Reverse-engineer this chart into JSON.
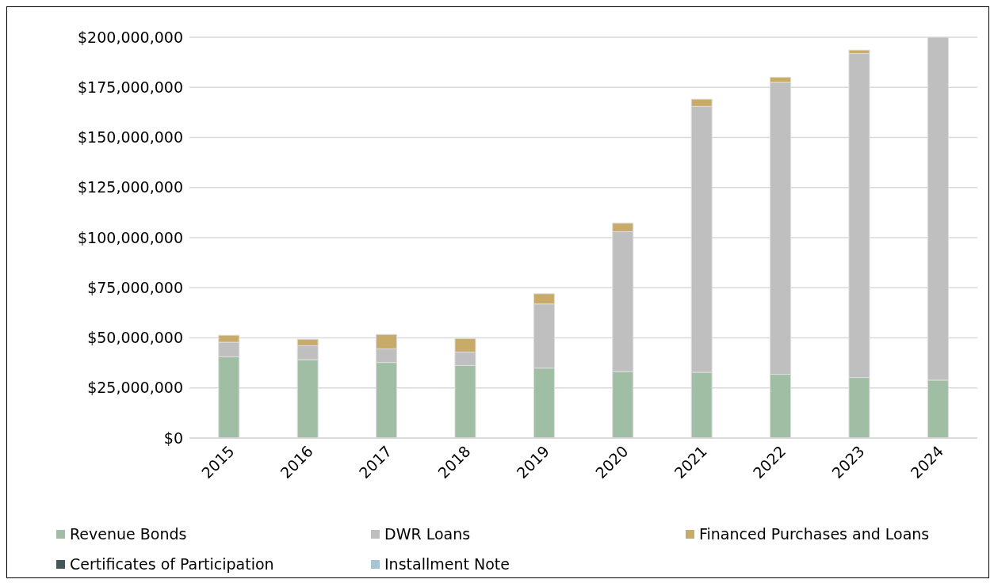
{
  "chart_data": {
    "type": "bar",
    "stacked": true,
    "categories": [
      "2015",
      "2016",
      "2017",
      "2018",
      "2019",
      "2020",
      "2021",
      "2022",
      "2023",
      "2024"
    ],
    "series": [
      {
        "name": "Revenue Bonds",
        "color": "#9fbea4",
        "values": [
          40500000.0,
          39100000.0,
          37700000.0,
          36200000.0,
          34900000.0,
          33200000.0,
          32800000.0,
          31800000.0,
          30200000.0,
          28900000.0
        ]
      },
      {
        "name": "DWR Loans",
        "color": "#bfbfbf",
        "values": [
          7300000.0,
          7000000.0,
          6800000.0,
          6700000.0,
          32000000.0,
          69800000.0,
          132700000.0,
          145700000.0,
          161700000.0,
          171100000.0
        ]
      },
      {
        "name": "Financed Purchases and Loans",
        "color": "#c9ab69",
        "values": [
          3500000.0,
          3200000.0,
          7200000.0,
          6700000.0,
          5100000.0,
          4200000.0,
          3600000.0,
          2500000.0,
          1700000.0,
          0
        ]
      },
      {
        "name": "Certificates of Participation",
        "color": "#44585c",
        "values": [
          0,
          0,
          0,
          0,
          0,
          0,
          0,
          0,
          0,
          0
        ]
      },
      {
        "name": "Installment Note",
        "color": "#a9c4d3",
        "values": [
          0,
          0,
          0,
          0,
          0,
          0,
          0,
          0,
          0,
          0
        ]
      }
    ],
    "ylim": [
      0,
      200000000
    ],
    "yticks": [
      {
        "value": 0,
        "label": "$0"
      },
      {
        "value": 25000000,
        "label": "$25,000,000"
      },
      {
        "value": 50000000,
        "label": "$50,000,000"
      },
      {
        "value": 75000000,
        "label": "$75,000,000"
      },
      {
        "value": 100000000,
        "label": "$100,000,000"
      },
      {
        "value": 125000000,
        "label": "$125,000,000"
      },
      {
        "value": 150000000,
        "label": "$150,000,000"
      },
      {
        "value": 175000000,
        "label": "$175,000,000"
      },
      {
        "value": 200000000,
        "label": "$200,000,000"
      }
    ],
    "grid": "y",
    "legend": "bottom"
  }
}
